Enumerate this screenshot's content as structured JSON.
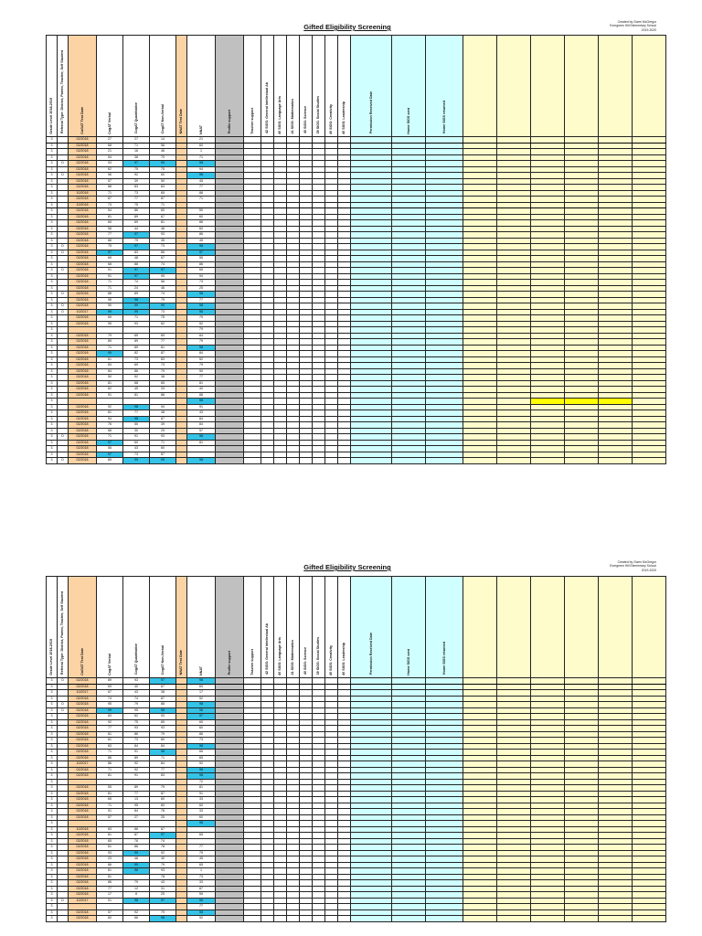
{
  "header": {
    "title": "Gifted Eligibility Screening",
    "credit_lines": [
      "Created by Gwen McGregor",
      "Evergreen Hill Elementary School",
      "2019-2020"
    ]
  },
  "columns": [
    {
      "label": "Grade Level 2018-2019",
      "class": "plain"
    },
    {
      "label": "Referral Type: District, Parent, Teacher, Self Student",
      "class": "plain"
    },
    {
      "label": "CoGAT Test Date",
      "class": "orange"
    },
    {
      "label": "CogAT Verbal",
      "class": "plain"
    },
    {
      "label": "CogAT Quantitative",
      "class": "plain"
    },
    {
      "label": "CogAT Non-Verbal",
      "class": "plain"
    },
    {
      "label": "NNAT Test Date",
      "class": "orange"
    },
    {
      "label": "NNAT",
      "class": "plain"
    },
    {
      "label": "Profile support",
      "class": "gray"
    },
    {
      "label": "Teacher support",
      "class": "plain"
    },
    {
      "label": "42 SIGS: General Intellectual Ab",
      "class": "plain"
    },
    {
      "label": "40 SIGS: Language Arts",
      "class": "plain"
    },
    {
      "label": "41 SIGS: Mathematics",
      "class": "plain"
    },
    {
      "label": "40 SIGS: Science",
      "class": "plain"
    },
    {
      "label": "39 SIGS: Social Studies",
      "class": "plain"
    },
    {
      "label": "40 SIGS: Creativity",
      "class": "plain"
    },
    {
      "label": "40 SIGS: Leadership",
      "class": "plain"
    },
    {
      "label": "Permission Received Date",
      "class": "cyan"
    },
    {
      "label": "Home SIGS sent",
      "class": "cyan"
    },
    {
      "label": "Home SIGS returned",
      "class": "cyan"
    },
    {
      "label": "",
      "class": "yellow"
    },
    {
      "label": "",
      "class": "yellow"
    },
    {
      "label": "",
      "class": "yellow"
    },
    {
      "label": "",
      "class": "yellow"
    },
    {
      "label": "",
      "class": "yellow"
    },
    {
      "label": "",
      "class": "yellow"
    }
  ],
  "sheet1_rows": [
    [
      "3",
      "",
      "02/2018",
      "27",
      "27",
      "14",
      "",
      "21"
    ],
    [
      "3",
      "",
      "02/2018",
      "68",
      "71",
      "56",
      "",
      "60"
    ],
    [
      "3",
      "",
      "02/2018",
      "21",
      "16",
      "46",
      "",
      "1"
    ],
    [
      "3",
      "",
      "02/2018",
      "54",
      "38",
      "70",
      "",
      "71"
    ],
    [
      "3",
      "D",
      "02/2018",
      "93",
      "97",
      "99",
      "",
      "98"
    ],
    [
      "3",
      "",
      "02/2018",
      "62",
      "75",
      "75",
      "",
      "94"
    ],
    [
      "3",
      "D",
      "02/2018",
      "56",
      "92",
      "60",
      "",
      "98"
    ],
    [
      "3",
      "",
      "02/2018",
      "57",
      "39",
      "50",
      "",
      "45"
    ],
    [
      "3",
      "",
      "02/2018",
      "88",
      "83",
      "83",
      "",
      "77"
    ],
    [
      "3",
      "",
      "10/2018",
      "71",
      "73",
      "65",
      "",
      "88"
    ],
    [
      "3",
      "",
      "02/2018",
      "87",
      "77",
      "87",
      "",
      "71"
    ],
    [
      "3",
      "",
      "10/2018",
      "73",
      "75",
      "71",
      "",
      ""
    ],
    [
      "3",
      "",
      "02/2018",
      "54",
      "86",
      "60",
      "",
      "50"
    ],
    [
      "3",
      "",
      "02/2018",
      "81",
      "89",
      "67",
      "",
      "60"
    ],
    [
      "3",
      "",
      "02/2018",
      "65",
      "69",
      "81",
      "",
      "86"
    ],
    [
      "3",
      "",
      "02/2018",
      "58",
      "44",
      "46",
      "",
      "60"
    ],
    [
      "3",
      "",
      "02/2018",
      "77",
      "97",
      "93",
      "",
      "86"
    ],
    [
      "3",
      "",
      "02/2018",
      "88",
      "79",
      "35",
      "",
      "45"
    ],
    [
      "3",
      "D",
      "02/2018",
      "75",
      "97",
      "73",
      "",
      "98"
    ],
    [
      "3",
      "D",
      "02/2018",
      "97",
      "83",
      "86",
      "",
      "97"
    ],
    [
      "3",
      "",
      "02/2018",
      "69",
      "48",
      "67",
      "",
      "55"
    ],
    [
      "3",
      "",
      "02/2018",
      "68",
      "88",
      "74",
      "",
      "86"
    ],
    [
      "3",
      "D",
      "02/2018",
      "91",
      "97",
      "97",
      "",
      "65"
    ],
    [
      "3",
      "",
      "02/2018",
      "91",
      "97",
      "95",
      "",
      "94"
    ],
    [
      "3",
      "",
      "02/2018",
      "71",
      "74",
      "56",
      "",
      "73"
    ],
    [
      "3",
      "",
      "02/2018",
      "71",
      "24",
      "46",
      "",
      "25"
    ],
    [
      "3",
      "D",
      "02/2018",
      "88",
      "89",
      "74",
      "",
      "98"
    ],
    [
      "3",
      "",
      "02/2018",
      "96",
      "98",
      "79",
      "",
      "77"
    ],
    [
      "3",
      "D",
      "02/2018",
      "50",
      "99",
      "99",
      "",
      "98"
    ],
    [
      "3",
      "D",
      "10/2017",
      "99",
      "99",
      "73",
      "",
      "96"
    ],
    [
      "3",
      "",
      "02/2018",
      "69",
      "71",
      "75",
      "",
      "79"
    ],
    [
      "3",
      "",
      "02/2018",
      "95",
      "93",
      "62",
      "",
      "52"
    ],
    [
      "3",
      "",
      "",
      "",
      "",
      "",
      "",
      "79"
    ],
    [
      "3",
      "",
      "02/2018",
      "79",
      "65",
      "69",
      "",
      "84"
    ],
    [
      "3",
      "",
      "02/2018",
      "89",
      "89",
      "77",
      "",
      "79"
    ],
    [
      "3",
      "",
      "02/2018",
      "71",
      "89",
      "81",
      "",
      "98"
    ],
    [
      "3",
      "",
      "02/2018",
      "99",
      "82",
      "87",
      "",
      "84"
    ],
    [
      "3",
      "",
      "02/2018",
      "61",
      "73",
      "83",
      "",
      "52"
    ],
    [
      "3",
      "",
      "02/2018",
      "83",
      "69",
      "73",
      "",
      "79"
    ],
    [
      "3",
      "",
      "02/2018",
      "84",
      "86",
      "79",
      "",
      "90"
    ],
    [
      "3",
      "",
      "02/2018",
      "50",
      "52",
      "38",
      "",
      "77"
    ],
    [
      "3",
      "",
      "02/2018",
      "81",
      "68",
      "65",
      "",
      "81"
    ],
    [
      "3",
      "",
      "02/2018",
      "62",
      "45",
      "33",
      "",
      "40"
    ],
    [
      "3",
      "",
      "02/2018",
      "91",
      "81",
      "86",
      "",
      "86"
    ],
    [
      "3",
      "",
      "",
      "",
      "",
      "",
      "",
      "98"
    ],
    [
      "3",
      "",
      "02/2018",
      "92",
      "98",
      "94",
      "",
      "91"
    ],
    [
      "3",
      "",
      "02/2018",
      "81",
      "77",
      "48",
      "",
      "43"
    ],
    [
      "3",
      "",
      "02/2018",
      "94",
      "98",
      "87",
      "",
      "84"
    ],
    [
      "3",
      "",
      "02/2018",
      "76",
      "55",
      "39",
      "",
      "84"
    ],
    [
      "3",
      "",
      "02/2018",
      "88",
      "30",
      "29",
      "",
      "57"
    ],
    [
      "3",
      "D",
      "02/2018",
      "71",
      "91",
      "93",
      "",
      "98"
    ],
    [
      "3",
      "",
      "02/2018",
      "97",
      "60",
      "71",
      "",
      "81"
    ],
    [
      "3",
      "",
      "02/2018",
      "55",
      "43",
      "60",
      "",
      ""
    ],
    [
      "3",
      "",
      "02/2018",
      "97",
      "73",
      "87",
      "",
      ""
    ],
    [
      "3",
      "D",
      "02/2018",
      "85",
      "99",
      "99",
      "",
      "98"
    ]
  ],
  "sheet2_rows": [
    [
      "3",
      "D",
      "02/2018",
      "89",
      "93",
      "97",
      "",
      "98"
    ],
    [
      "3",
      "",
      "02/2018",
      "69",
      "40",
      "67",
      "",
      "69"
    ],
    [
      "3",
      "",
      "10/2017",
      "67",
      "43",
      "38",
      "",
      "17"
    ],
    [
      "3",
      "",
      "02/2018",
      "74",
      "74",
      "87",
      "",
      "52"
    ],
    [
      "3",
      "D",
      "02/2018",
      "95",
      "79",
      "88",
      "",
      "98"
    ],
    [
      "3",
      "D",
      "02/2018",
      "99",
      "95",
      "98",
      "",
      "96"
    ],
    [
      "3",
      "",
      "02/2018",
      "83",
      "62",
      "93",
      "",
      "97"
    ],
    [
      "3",
      "",
      "02/2018",
      "92",
      "75",
      "65",
      "",
      "69"
    ],
    [
      "3",
      "",
      "02/2018",
      "77",
      "93",
      "93",
      "",
      "60"
    ],
    [
      "3",
      "",
      "02/2018",
      "81",
      "86",
      "79",
      "",
      "86"
    ],
    [
      "3",
      "",
      "02/2018",
      "81",
      "73",
      "60",
      "",
      "73"
    ],
    [
      "3",
      "",
      "02/2018",
      "83",
      "84",
      "84",
      "",
      "98"
    ],
    [
      "3",
      "",
      "02/2018",
      "71",
      "91",
      "98",
      "",
      "65"
    ],
    [
      "3",
      "",
      "02/2018",
      "86",
      "89",
      "71",
      "",
      "65"
    ],
    [
      "3",
      "",
      "10/2017",
      "86",
      "92",
      "84",
      "",
      "92"
    ],
    [
      "3",
      "",
      "02/2018",
      "71",
      "92",
      "77",
      "",
      "96"
    ],
    [
      "3",
      "",
      "02/2018",
      "81",
      "91",
      "83",
      "",
      "98"
    ],
    [
      "3",
      "",
      "",
      "",
      "",
      "",
      "",
      "72"
    ],
    [
      "3",
      "",
      "02/2018",
      "55",
      "89",
      "79",
      "",
      "81"
    ],
    [
      "3",
      "",
      "02/2018",
      "81",
      "77",
      "87",
      "",
      "91"
    ],
    [
      "3",
      "",
      "02/2018",
      "65",
      "13",
      "60",
      "",
      "33"
    ],
    [
      "3",
      "",
      "02/2018",
      "71",
      "95",
      "60",
      "",
      "60"
    ],
    [
      "3",
      "",
      "02/2018",
      "91",
      "84",
      "78",
      "",
      "33"
    ],
    [
      "3",
      "",
      "02/2018",
      "57",
      "27",
      "25",
      "",
      "60"
    ],
    [
      "3",
      "",
      "",
      "",
      "",
      "",
      "",
      "98"
    ],
    [
      "3",
      "",
      "10/2018",
      "83",
      "86",
      "67",
      "",
      ""
    ],
    [
      "3",
      "",
      "02/2018",
      "81",
      "87",
      "97",
      "",
      "65"
    ],
    [
      "3",
      "",
      "02/2018",
      "65",
      "76",
      "74",
      "",
      ""
    ],
    [
      "3",
      "",
      "02/2018",
      "81",
      "86",
      "78",
      "",
      "77"
    ],
    [
      "3",
      "",
      "02/2018",
      "93",
      "99",
      "92",
      "",
      "79"
    ],
    [
      "3",
      "",
      "02/2018",
      "23",
      "48",
      "40",
      "",
      "45"
    ],
    [
      "3",
      "",
      "02/2018",
      "86",
      "99",
      "79",
      "",
      "65"
    ],
    [
      "3",
      "",
      "02/2018",
      "81",
      "98",
      "93",
      "",
      "1"
    ],
    [
      "3",
      "",
      "02/2018",
      "81",
      "",
      "78",
      "",
      "73"
    ],
    [
      "3",
      "",
      "02/2018",
      "86",
      "79",
      "43",
      "",
      "33"
    ],
    [
      "3",
      "",
      "02/2018",
      "77",
      "12",
      "31",
      "",
      "87"
    ],
    [
      "3",
      "",
      "02/2018",
      "17",
      "8",
      "25",
      "",
      "55"
    ],
    [
      "3",
      "D",
      "10/2017",
      "91",
      "98",
      "97",
      "",
      "96"
    ],
    [
      "3",
      "",
      "",
      "",
      "",
      "",
      "",
      "77"
    ],
    [
      "3",
      "",
      "02/2018",
      "57",
      "92",
      "79",
      "",
      "98"
    ],
    [
      "3",
      "",
      "02/2018",
      "60",
      "66",
      "98",
      "",
      "92"
    ]
  ]
}
